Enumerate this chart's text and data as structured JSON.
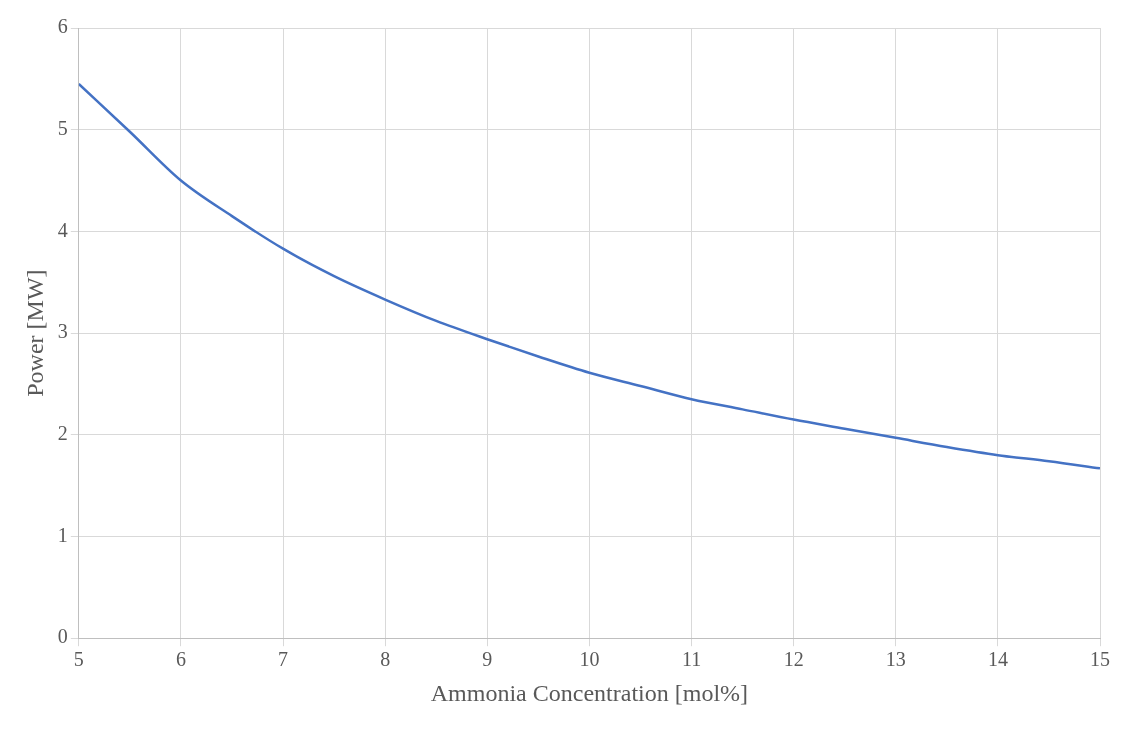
{
  "chart_data": {
    "type": "line",
    "xlabel": "Ammonia Concentration [mol%]",
    "ylabel": "Power [MW]",
    "x": [
      5,
      5.5,
      6,
      6.5,
      7,
      7.5,
      8,
      8.5,
      9,
      9.5,
      10,
      10.5,
      11,
      11.5,
      12,
      12.5,
      13,
      13.5,
      14,
      14.5,
      15
    ],
    "series": [
      {
        "color": "#4472c4",
        "values": [
          5.45,
          4.98,
          4.5,
          4.15,
          3.83,
          3.56,
          3.33,
          3.12,
          2.94,
          2.77,
          2.61,
          2.48,
          2.35,
          2.25,
          2.15,
          2.06,
          1.97,
          1.88,
          1.8,
          1.74,
          1.67
        ]
      }
    ],
    "xlim": [
      5,
      15
    ],
    "xticks": [
      5,
      6,
      7,
      8,
      9,
      10,
      11,
      12,
      13,
      14,
      15
    ],
    "ylim": [
      0,
      6
    ],
    "yticks": [
      0,
      1,
      2,
      3,
      4,
      5,
      6
    ],
    "grid": true,
    "legend": false,
    "marker": "none",
    "line_style": "solid"
  }
}
